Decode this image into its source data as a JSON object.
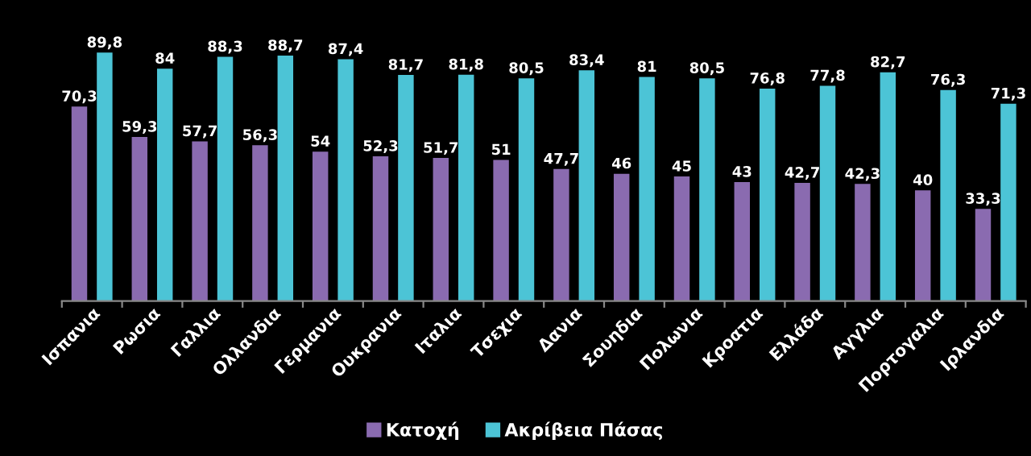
{
  "chart_data": {
    "type": "bar",
    "categories": [
      "Ισπανια",
      "Ρωσια",
      "Γαλλια",
      "Ολλανδια",
      "Γερμανια",
      "Ουκρανια",
      "Ιταλια",
      "Τσεχια",
      "Δανια",
      "Σουηδια",
      "Πολωνια",
      "Κροατια",
      "Ελλάδα",
      "Αγγλια",
      "Πορτογαλια",
      "Ιρλανδια"
    ],
    "series": [
      {
        "name": "Κατοχή",
        "color": "#8a6bb0",
        "values": [
          70.3,
          59.3,
          57.7,
          56.3,
          54,
          52.3,
          51.7,
          51,
          47.7,
          46,
          45,
          43,
          42.7,
          42.3,
          40,
          33.3
        ],
        "value_labels": [
          "70,3",
          "59,3",
          "57,7",
          "56,3",
          "54",
          "52,3",
          "51,7",
          "51",
          "47,7",
          "46",
          "45",
          "43",
          "42,7",
          "42,3",
          "40",
          "33,3"
        ]
      },
      {
        "name": "Ακρίβεια Πάσας",
        "color": "#4cc4d6",
        "values": [
          89.8,
          84,
          88.3,
          88.7,
          87.4,
          81.7,
          81.8,
          80.5,
          83.4,
          81,
          80.5,
          76.8,
          77.8,
          82.7,
          76.3,
          71.3
        ],
        "value_labels": [
          "89,8",
          "84",
          "88,3",
          "88,7",
          "87,4",
          "81,7",
          "81,8",
          "80,5",
          "83,4",
          "81",
          "80,5",
          "76,8",
          "77,8",
          "82,7",
          "76,3",
          "71,3"
        ]
      }
    ],
    "legend": "bottom"
  }
}
